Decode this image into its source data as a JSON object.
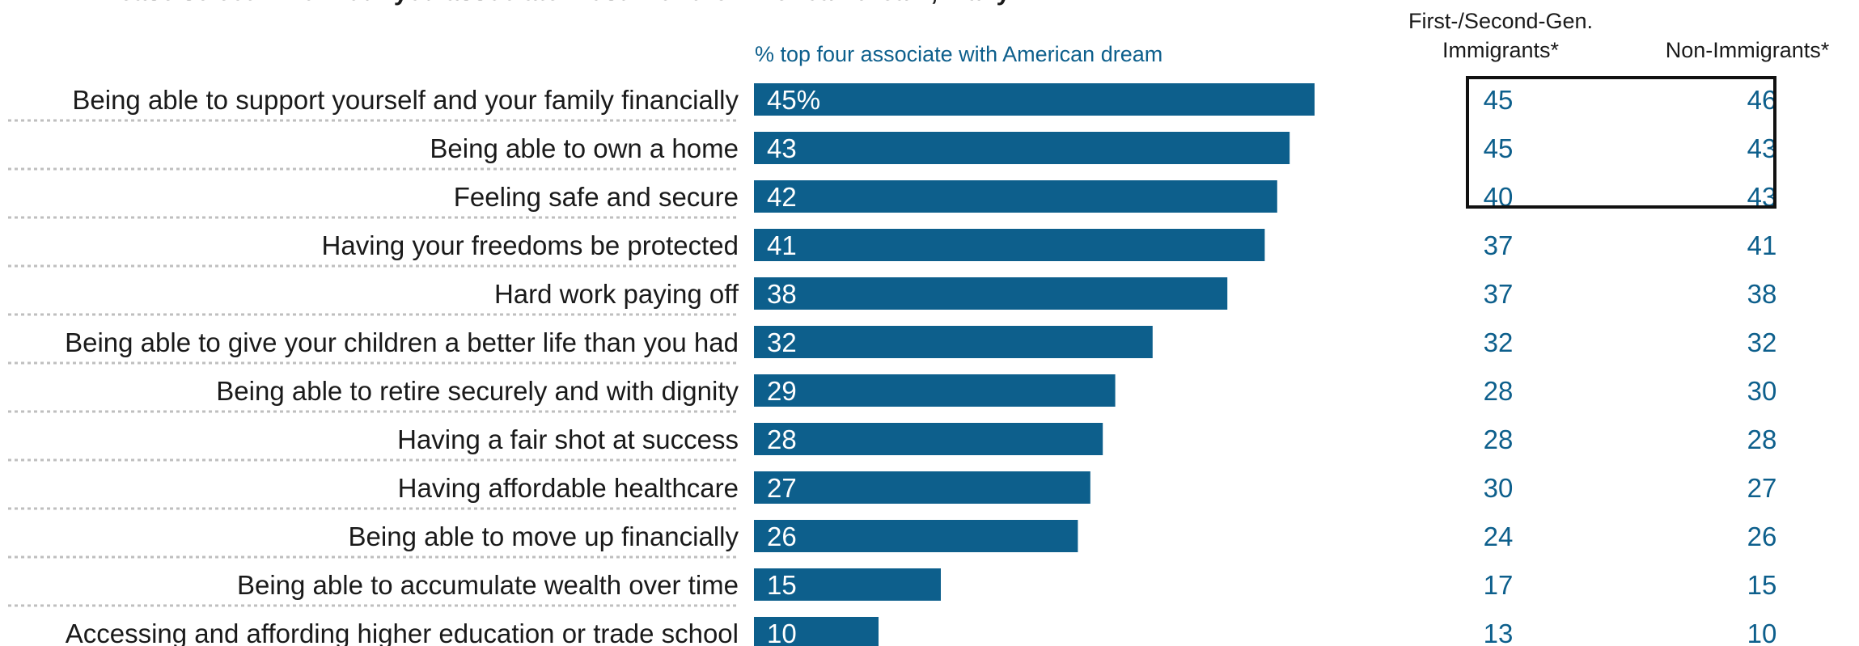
{
  "header": {
    "title": "Please select which four you associate most with the American dream, if any.",
    "bar_column_label": "% top four associate with American dream",
    "column_1_line1": "First-/Second-Gen.",
    "column_1_line2": "Immigrants*",
    "column_2": "Non-Immigrants*"
  },
  "colors": {
    "bar": "#0d5f8c",
    "value_text": "#0d5f8c",
    "highlight_border": "#111111"
  },
  "chart_data": {
    "type": "bar",
    "orientation": "horizontal",
    "title": "Please select which four you associate most with the American dream, if any.",
    "xlabel": "% top four associate with American dream",
    "xlim": [
      0,
      50
    ],
    "grid": false,
    "categories": [
      "Being able to support yourself and your family financially",
      "Being able to own a home",
      "Feeling safe and secure",
      "Having your freedoms be protected",
      "Hard work paying off",
      "Being able to give your children a better life than you had",
      "Being able to retire securely and with dignity",
      "Having a fair shot at success",
      "Having affordable healthcare",
      "Being able to move up financially",
      "Being able to accumulate wealth over time",
      "Accessing and affording higher education or trade school"
    ],
    "values": [
      45,
      43,
      42,
      41,
      38,
      32,
      29,
      28,
      27,
      26,
      15,
      10
    ],
    "value_labels": [
      "45%",
      "43",
      "42",
      "41",
      "38",
      "32",
      "29",
      "28",
      "27",
      "26",
      "15",
      "10"
    ],
    "table_columns": [
      {
        "name": "First-/Second-Gen. Immigrants*",
        "values": [
          45,
          45,
          40,
          37,
          37,
          32,
          28,
          28,
          30,
          24,
          17,
          13
        ]
      },
      {
        "name": "Non-Immigrants*",
        "values": [
          46,
          43,
          43,
          41,
          38,
          32,
          30,
          28,
          27,
          26,
          15,
          10
        ]
      }
    ],
    "highlighted_rows": [
      0,
      1,
      2
    ]
  }
}
